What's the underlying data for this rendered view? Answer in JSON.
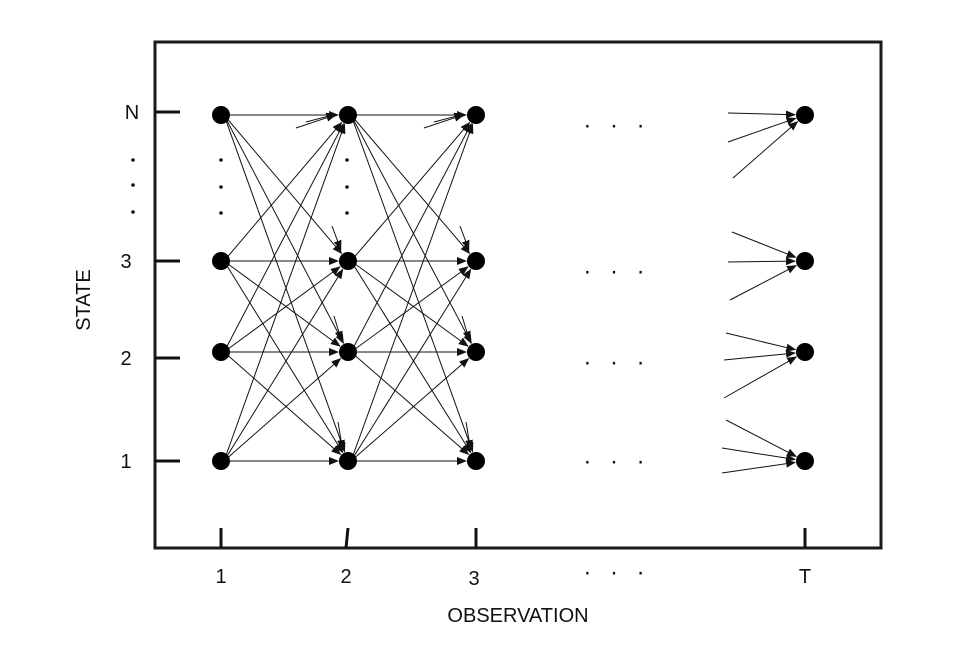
{
  "axis": {
    "xlabel": "OBSERVATION",
    "ylabel": "STATE"
  },
  "state_ticks": [
    {
      "label": "N"
    },
    {
      "label": "3"
    },
    {
      "label": "2"
    },
    {
      "label": "1"
    }
  ],
  "observation_ticks": [
    {
      "label": "1"
    },
    {
      "label": "2"
    },
    {
      "label": "3"
    },
    {
      "label": "T"
    }
  ],
  "ellipsis": "· · ·",
  "colors": {
    "ink": "#111111",
    "frame": "#1a1a1a",
    "background": "#ffffff"
  }
}
